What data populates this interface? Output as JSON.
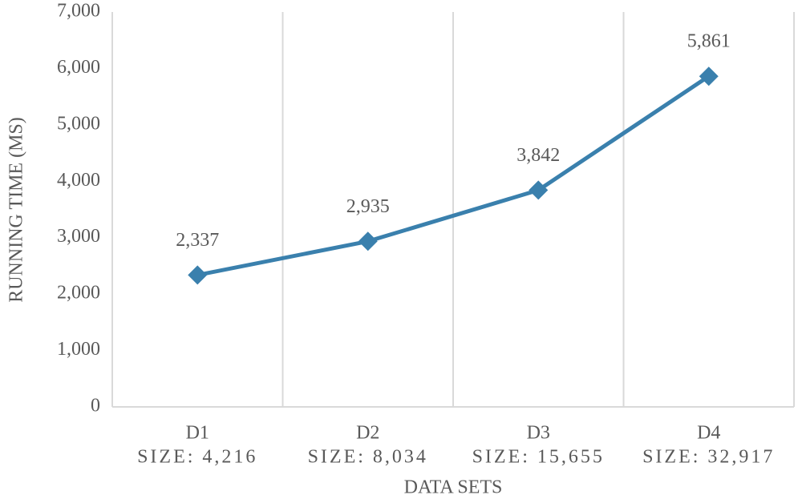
{
  "chart_data": {
    "type": "line",
    "y_label": "RUNNING TIME (MS)",
    "x_label": "DATA SETS",
    "categories": [
      "D1",
      "D2",
      "D3",
      "D4"
    ],
    "category_sizes": [
      "SIZE: 4,216",
      "SIZE: 8,034",
      "SIZE: 15,655",
      "SIZE: 32,917"
    ],
    "series": [
      {
        "color": "#3a80ad",
        "values": [
          2337,
          2935,
          3842,
          5861
        ],
        "value_labels": [
          "2,337",
          "2,935",
          "3,842",
          "5,861"
        ]
      }
    ],
    "ylim": [
      0,
      7000
    ],
    "yticks": [
      0,
      {
        "value": 1000,
        "label": "1,000"
      },
      {
        "value": 2000,
        "label": "2,000"
      },
      {
        "value": 3000,
        "label": "3,000"
      },
      {
        "value": 4000,
        "label": "4,000"
      },
      {
        "value": 5000,
        "label": "5,000"
      },
      {
        "value": 6000,
        "label": "6,000"
      },
      {
        "value": 7000,
        "label": "7,000"
      }
    ],
    "grid": "vertical",
    "marker": "diamond"
  }
}
